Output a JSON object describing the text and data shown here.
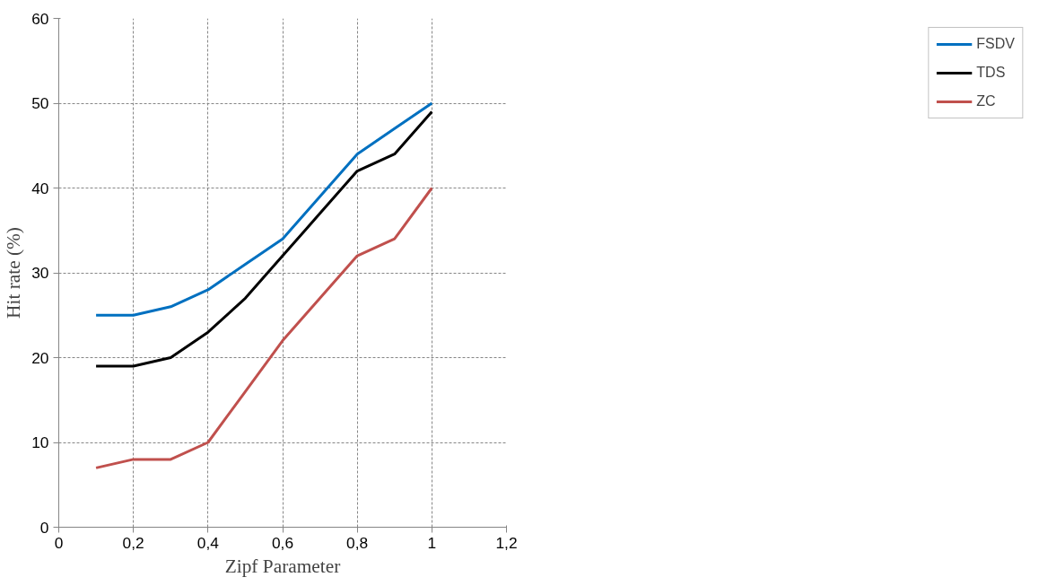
{
  "chart_data": {
    "type": "line",
    "xlabel": "Zipf Parameter",
    "ylabel": "Hit rate (%)",
    "x": [
      0.1,
      0.2,
      0.3,
      0.4,
      0.5,
      0.6,
      0.7,
      0.8,
      0.9,
      1
    ],
    "series": [
      {
        "name": "FSDV",
        "color": "#0070c0",
        "values": [
          25,
          25,
          26,
          28,
          31,
          34,
          39,
          44,
          47,
          50
        ]
      },
      {
        "name": "TDS",
        "color": "#000000",
        "values": [
          19,
          19,
          20,
          23,
          27,
          32,
          37,
          42,
          44,
          49
        ]
      },
      {
        "name": "ZC",
        "color": "#c0504d",
        "values": [
          7,
          8,
          8,
          10,
          16,
          22,
          27,
          32,
          34,
          40
        ]
      }
    ],
    "xlim": [
      0,
      1.2
    ],
    "xticks": [
      {
        "value": 0,
        "label": "0"
      },
      {
        "value": 0.2,
        "label": "0,2"
      },
      {
        "value": 0.4,
        "label": "0,4"
      },
      {
        "value": 0.6,
        "label": "0,6"
      },
      {
        "value": 0.8,
        "label": "0,8"
      },
      {
        "value": 1,
        "label": "1"
      },
      {
        "value": 1.2,
        "label": "1,2"
      }
    ],
    "ylim": [
      0,
      60
    ],
    "yticks": [
      0,
      10,
      20,
      30,
      40,
      50,
      60
    ],
    "grid": true,
    "legend": "right",
    "marker": "none",
    "line_style": "solid"
  }
}
